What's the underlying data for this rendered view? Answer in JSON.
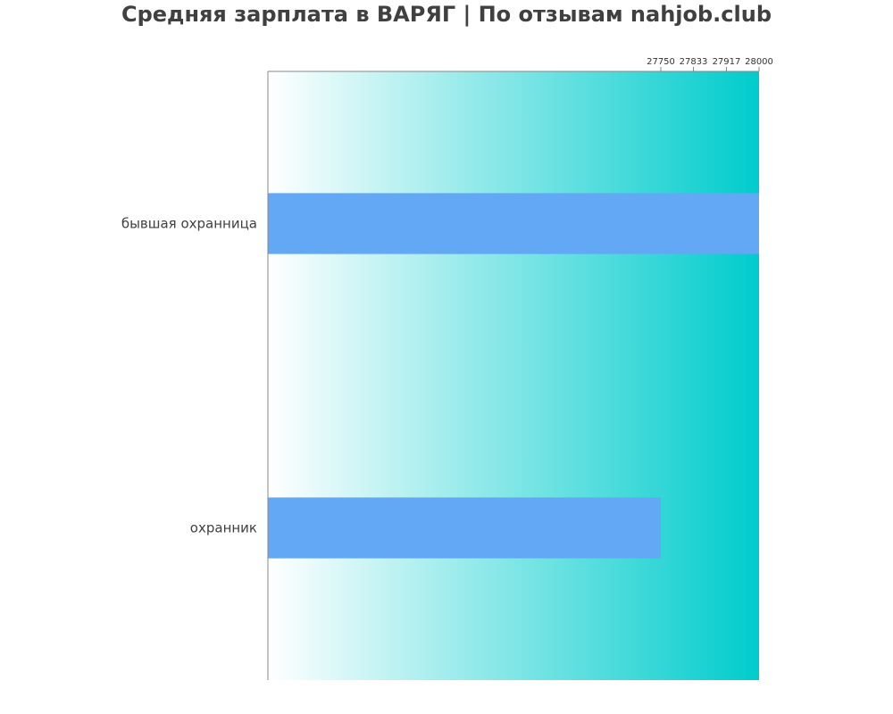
{
  "chart_data": {
    "type": "bar",
    "orientation": "horizontal",
    "title": "Средняя зарплата в ВАРЯГ | По отзывам nahjob.club",
    "xlabel": "",
    "ylabel": "",
    "categories": [
      "бывшая охранница",
      "охранник"
    ],
    "values": [
      28000,
      27750
    ],
    "xticks": [
      "27750",
      "27833",
      "27917",
      "28000"
    ],
    "xaxis_position": "top",
    "grid": false,
    "colors": {
      "bar": "#63a8f5",
      "background_gradient_start": "#ffffff",
      "background_gradient_end": "#00cccc",
      "axis": "#888888"
    }
  }
}
